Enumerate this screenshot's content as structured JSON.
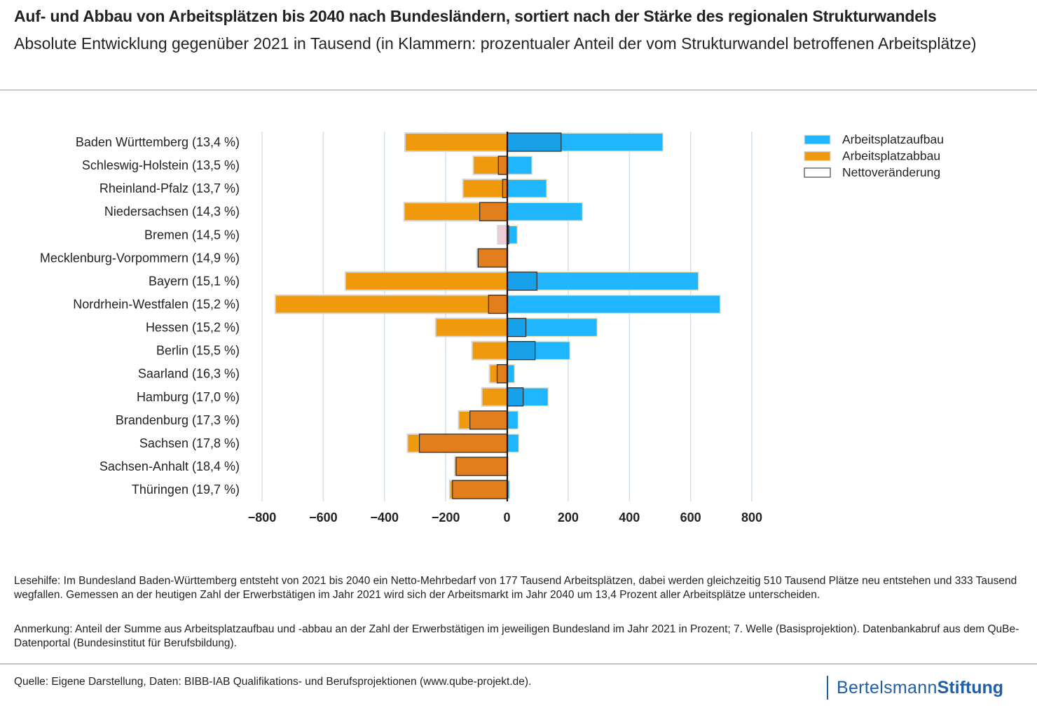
{
  "header": {
    "title": "Auf- und Abbau von Arbeitsplätzen bis 2040 nach Bundesländern, sortiert nach der Stärke des regionalen Strukturwandels",
    "subtitle": "Absolute Entwicklung gegenüber 2021 in Tausend (in Klammern: prozentualer Anteil der vom Strukturwandel betroffenen Arbeitsplätze)"
  },
  "chart_data": {
    "type": "bar",
    "orientation": "horizontal",
    "title": "Auf- und Abbau von Arbeitsplätzen bis 2040 nach Bundesländern, sortiert nach der Stärke des regionalen Strukturwandels",
    "xlabel": "",
    "ylabel": "",
    "xlim": [
      -800,
      800
    ],
    "xticks": [
      -800,
      -600,
      -400,
      -200,
      0,
      200,
      400,
      600,
      800
    ],
    "xtick_labels": [
      "−800",
      "−600",
      "−400",
      "−200",
      "0",
      "200",
      "400",
      "600",
      "800"
    ],
    "grid": "vertical",
    "legend_position": "top-right",
    "categories": [
      "Baden Württemberg (13,4 %)",
      "Schleswig-Holstein (13,5 %)",
      "Rheinland-Pfalz (13,7 %)",
      "Niedersachsen (14,3 %)",
      "Bremen (14,5 %)",
      "Mecklenburg-Vorpommern (14,9 %)",
      "Bayern (15,1 %)",
      "Nordrhein-Westfalen (15,2 %)",
      "Hessen (15,2 %)",
      "Berlin (15,5 %)",
      "Saarland (16,3 %)",
      "Hamburg (17,0 %)",
      "Brandenburg (17,3 %)",
      "Sachsen (17,8 %)",
      "Sachsen-Anhalt (18,4 %)",
      "Thüringen (19,7 %)"
    ],
    "series": [
      {
        "name": "Arbeitsplatzaufbau",
        "color": "#1fb6ff",
        "values": [
          510,
          82,
          130,
          247,
          34,
          4,
          626,
          697,
          295,
          206,
          25,
          135,
          37,
          39,
          5,
          9
        ]
      },
      {
        "name": "Arbeitsplatzabbau",
        "color": "#f0990d",
        "values": [
          -333,
          -110,
          -144,
          -336,
          -30,
          -98,
          -528,
          -757,
          -233,
          -114,
          -57,
          -82,
          -158,
          -325,
          -171,
          -187
        ]
      },
      {
        "name": "Nettoveränderung",
        "color": "#ffffff",
        "values": [
          177,
          -28,
          -14,
          -89,
          4,
          -94,
          98,
          -60,
          62,
          92,
          -32,
          53,
          -121,
          -286,
          -166,
          -178
        ]
      }
    ]
  },
  "legend": [
    {
      "label": "Arbeitsplatzaufbau",
      "color": "#1fb6ff"
    },
    {
      "label": "Arbeitsplatzabbau",
      "color": "#f0990d"
    },
    {
      "label": "Nettoveränderung",
      "color": "#ffffff"
    }
  ],
  "notes": {
    "lesehilfe": "Lesehilfe: Im Bundesland Baden-Württemberg entsteht von 2021 bis 2040 ein Netto-Mehrbedarf von 177 Tausend Arbeitsplätzen, dabei werden gleichzeitig 510 Tausend Plätze neu entstehen und 333 Tausend wegfallen. Gemessen an der heutigen Zahl der Erwerbstätigen im Jahr 2021 wird sich der Arbeitsmarkt im Jahr 2040 um 13,4 Prozent aller Arbeitsplätze unterscheiden.",
    "anmerkung": "Anmerkung: Anteil der Summe aus Arbeitsplatzaufbau und -abbau an der Zahl der Erwerbstätigen im jeweiligen Bundesland im Jahr 2021 in Prozent; 7. Welle (Basisprojektion). Datenbankabruf aus dem QuBe-Datenportal (Bundesinstitut für Berufsbildung)."
  },
  "footer": {
    "source": "Quelle: Eigene Darstellung, Daten: BIBB-IAB Qualifikations- und Berufsprojektionen (www.qube-projekt.de).",
    "logo_part1": "Bertelsmann",
    "logo_part2": "Stiftung"
  }
}
